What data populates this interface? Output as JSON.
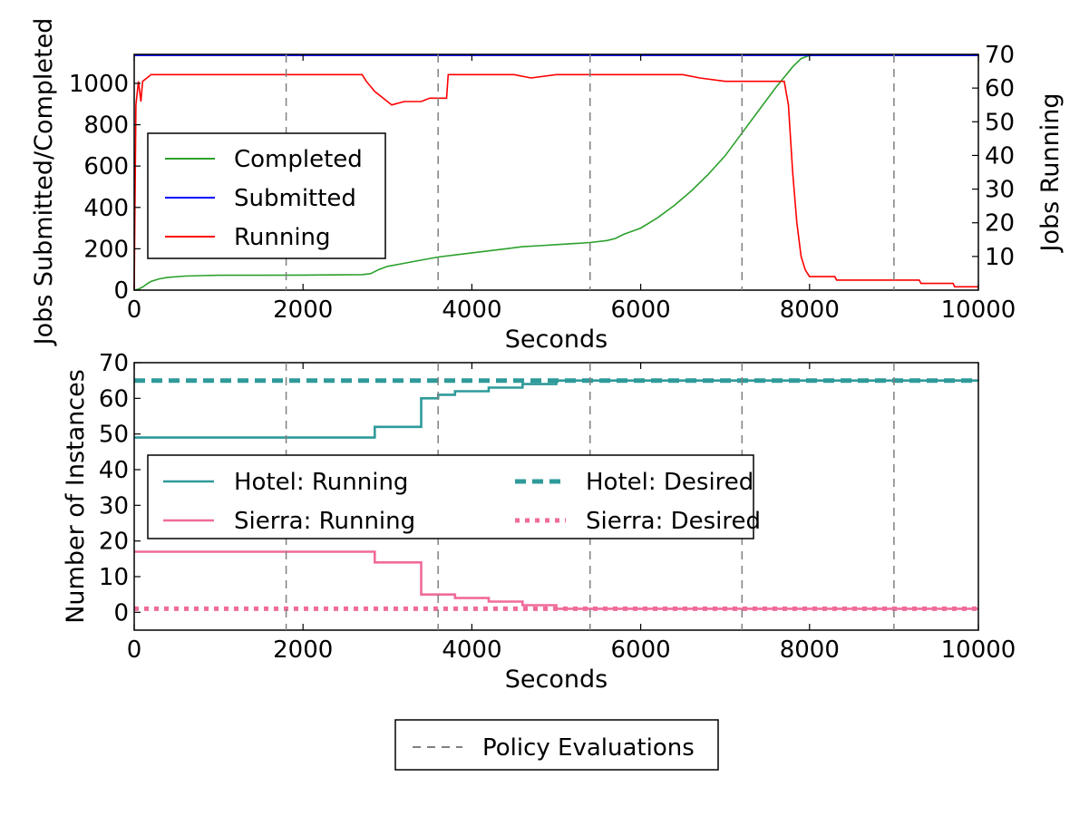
{
  "policy_legend": {
    "label": "Policy Evaluations",
    "color": "#808080"
  },
  "chart_data": [
    {
      "type": "line",
      "xlabel": "Seconds",
      "ylabel": "Jobs Submitted/Completed",
      "y2label": "Jobs Running",
      "xlim": [
        0,
        10000
      ],
      "ylim": [
        0,
        1140
      ],
      "y2lim": [
        0,
        70
      ],
      "xticks": [
        "0",
        "2000",
        "4000",
        "6000",
        "8000",
        "10000"
      ],
      "yticks": [
        "0",
        "200",
        "400",
        "600",
        "800",
        "1000"
      ],
      "y2ticks": [
        "10",
        "20",
        "30",
        "40",
        "50",
        "60",
        "70"
      ],
      "policy_evaluations_x": [
        1800,
        3600,
        5400,
        7200,
        9000
      ],
      "legend_position": "center-left",
      "series": [
        {
          "name": "Completed",
          "axis": "left",
          "color": "#2ca02c",
          "x": [
            0,
            50,
            100,
            150,
            200,
            300,
            400,
            600,
            800,
            1000,
            1500,
            2000,
            2500,
            2700,
            2800,
            2900,
            3000,
            3200,
            3400,
            3600,
            3800,
            4000,
            4200,
            4400,
            4600,
            4800,
            5000,
            5200,
            5400,
            5600,
            5700,
            5800,
            6000,
            6200,
            6400,
            6600,
            6800,
            7000,
            7200,
            7400,
            7600,
            7700,
            7800,
            7900,
            8000,
            8500,
            9000,
            9500,
            10000
          ],
          "y": [
            0,
            5,
            15,
            30,
            42,
            55,
            62,
            68,
            70,
            72,
            72,
            73,
            74,
            75,
            80,
            100,
            115,
            130,
            145,
            160,
            170,
            180,
            190,
            200,
            210,
            215,
            220,
            225,
            230,
            240,
            250,
            270,
            300,
            350,
            410,
            480,
            560,
            650,
            760,
            870,
            980,
            1030,
            1080,
            1120,
            1135,
            1135,
            1135,
            1135,
            1135
          ]
        },
        {
          "name": "Submitted",
          "axis": "left",
          "color": "#0000ff",
          "x": [
            0,
            10000
          ],
          "y": [
            1135,
            1135
          ]
        },
        {
          "name": "Running",
          "axis": "right",
          "color": "#ff0000",
          "x": [
            0,
            20,
            50,
            80,
            100,
            150,
            200,
            400,
            1000,
            2000,
            2700,
            2750,
            2850,
            2950,
            3050,
            3200,
            3400,
            3500,
            3700,
            3720,
            4000,
            4500,
            4700,
            5000,
            5500,
            6000,
            6500,
            6700,
            7000,
            7500,
            7700,
            7750,
            7800,
            7850,
            7900,
            7950,
            8000,
            8300,
            8320,
            9000,
            9300,
            9320,
            9700,
            9720,
            10000
          ],
          "y": [
            0,
            55,
            62,
            56,
            62,
            63,
            64,
            64,
            64,
            64,
            64,
            62,
            59,
            57,
            55,
            56,
            56,
            57,
            57,
            64,
            64,
            64,
            63,
            64,
            64,
            64,
            64,
            63,
            62,
            62,
            62,
            55,
            35,
            20,
            10,
            6,
            4,
            4,
            3,
            3,
            3,
            2,
            2,
            1,
            1
          ]
        }
      ]
    },
    {
      "type": "line",
      "xlabel": "Seconds",
      "ylabel": "Number of Instances",
      "xlim": [
        0,
        10000
      ],
      "ylim": [
        -5,
        70
      ],
      "xticks": [
        "0",
        "2000",
        "4000",
        "6000",
        "8000",
        "10000"
      ],
      "yticks": [
        "0",
        "10",
        "20",
        "30",
        "40",
        "50",
        "60",
        "70"
      ],
      "policy_evaluations_x": [
        1800,
        3600,
        5400,
        7200,
        9000
      ],
      "legend_position": "center-left",
      "series": [
        {
          "name": "Hotel: Running",
          "color": "#2e9a9a",
          "style": "solid",
          "x": [
            0,
            2850,
            2850,
            3400,
            3400,
            3600,
            3600,
            3800,
            3800,
            4200,
            4200,
            4600,
            4600,
            5000,
            5000,
            10000
          ],
          "y": [
            49,
            49,
            52,
            52,
            60,
            60,
            61,
            61,
            62,
            62,
            63,
            63,
            64,
            64,
            65,
            65
          ]
        },
        {
          "name": "Hotel: Desired",
          "color": "#2e9a9a",
          "style": "dashed",
          "x": [
            0,
            10000
          ],
          "y": [
            65,
            65
          ]
        },
        {
          "name": "Sierra: Running",
          "color": "#f06b9b",
          "style": "solid",
          "x": [
            0,
            2850,
            2850,
            3400,
            3400,
            3800,
            3800,
            4200,
            4200,
            4600,
            4600,
            5000,
            5000,
            10000
          ],
          "y": [
            17,
            17,
            14,
            14,
            5,
            5,
            4,
            4,
            3,
            3,
            2,
            2,
            1,
            1
          ]
        },
        {
          "name": "Sierra: Desired",
          "color": "#f06b9b",
          "style": "dotted",
          "x": [
            0,
            10000
          ],
          "y": [
            1,
            1
          ]
        }
      ]
    }
  ]
}
